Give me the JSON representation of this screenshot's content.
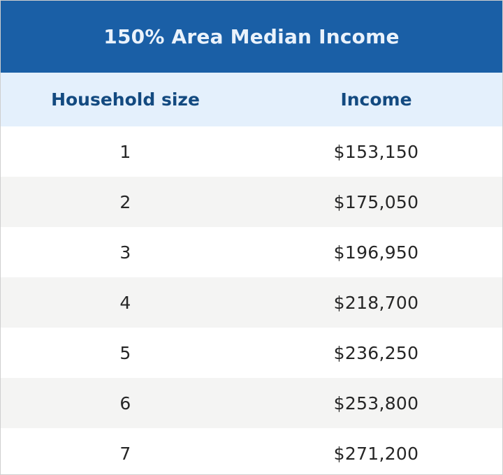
{
  "table": {
    "title": "150% Area Median Income",
    "headers": [
      "Household size",
      "Income"
    ],
    "rows": [
      [
        "1",
        "$153,150"
      ],
      [
        "2",
        "$175,050"
      ],
      [
        "3",
        "$196,950"
      ],
      [
        "4",
        "$218,700"
      ],
      [
        "5",
        "$236,250"
      ],
      [
        "6",
        "$253,800"
      ],
      [
        "7",
        "$271,200"
      ]
    ]
  },
  "colors": {
    "title_background": "#1a5fa6",
    "title_text": "#eaf2fb",
    "header_background": "#e4f0fc",
    "header_text": "#134a80",
    "alt_row_background": "#f4f4f3",
    "row_text": "#262626"
  }
}
